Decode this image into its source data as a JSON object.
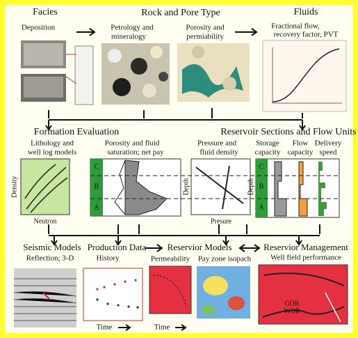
{
  "facies": {
    "title": "Facies",
    "subtitle": "Deposition"
  },
  "rock_and_pore_type": {
    "title": "Rock and Pore Type",
    "petrology": [
      "Petrology and",
      "mineralogy"
    ],
    "porosity": [
      "Porosity and",
      "permiability"
    ]
  },
  "fluids": {
    "title": "Fluids",
    "subtitle": [
      "Fractional flow,",
      "recovery factor, PVT"
    ]
  },
  "formation_evaluation": {
    "title": "Formation Evaluation",
    "lithology": [
      "Lithology and",
      "well log models"
    ],
    "porosity": [
      "Porosity and fluid",
      "saturation; net pay"
    ],
    "pressure": [
      "Pressure and",
      "fluid density"
    ],
    "density_axis": "Density",
    "neutron_axis": "Neutron",
    "depth_axis": "Depth",
    "pressure_axis": "Presure",
    "zones": [
      "C",
      "B",
      "A"
    ]
  },
  "reservoir_sections": {
    "title": "Reservoir Sections and Flow Units",
    "storage": [
      "Storage",
      "capacity"
    ],
    "flow": [
      "Flow",
      "capacity"
    ],
    "delivery": [
      "Delivery",
      "speed"
    ],
    "depth_axis": "Depth",
    "zones": [
      "C",
      "B",
      "A"
    ]
  },
  "seismic": {
    "title": "Seismic Models",
    "subtitle": "Reflection; 3-D"
  },
  "production": {
    "title": "Production Data",
    "subtitle": "History",
    "time": "Time"
  },
  "models": {
    "title": "Reservior Models",
    "permeability": "Permeability",
    "isopach": "Pay zone isopach",
    "time": "Time"
  },
  "management": {
    "title": "Reservior Management",
    "subtitle": "Well field performance",
    "gor": "GOR",
    "wor": "WOR"
  }
}
